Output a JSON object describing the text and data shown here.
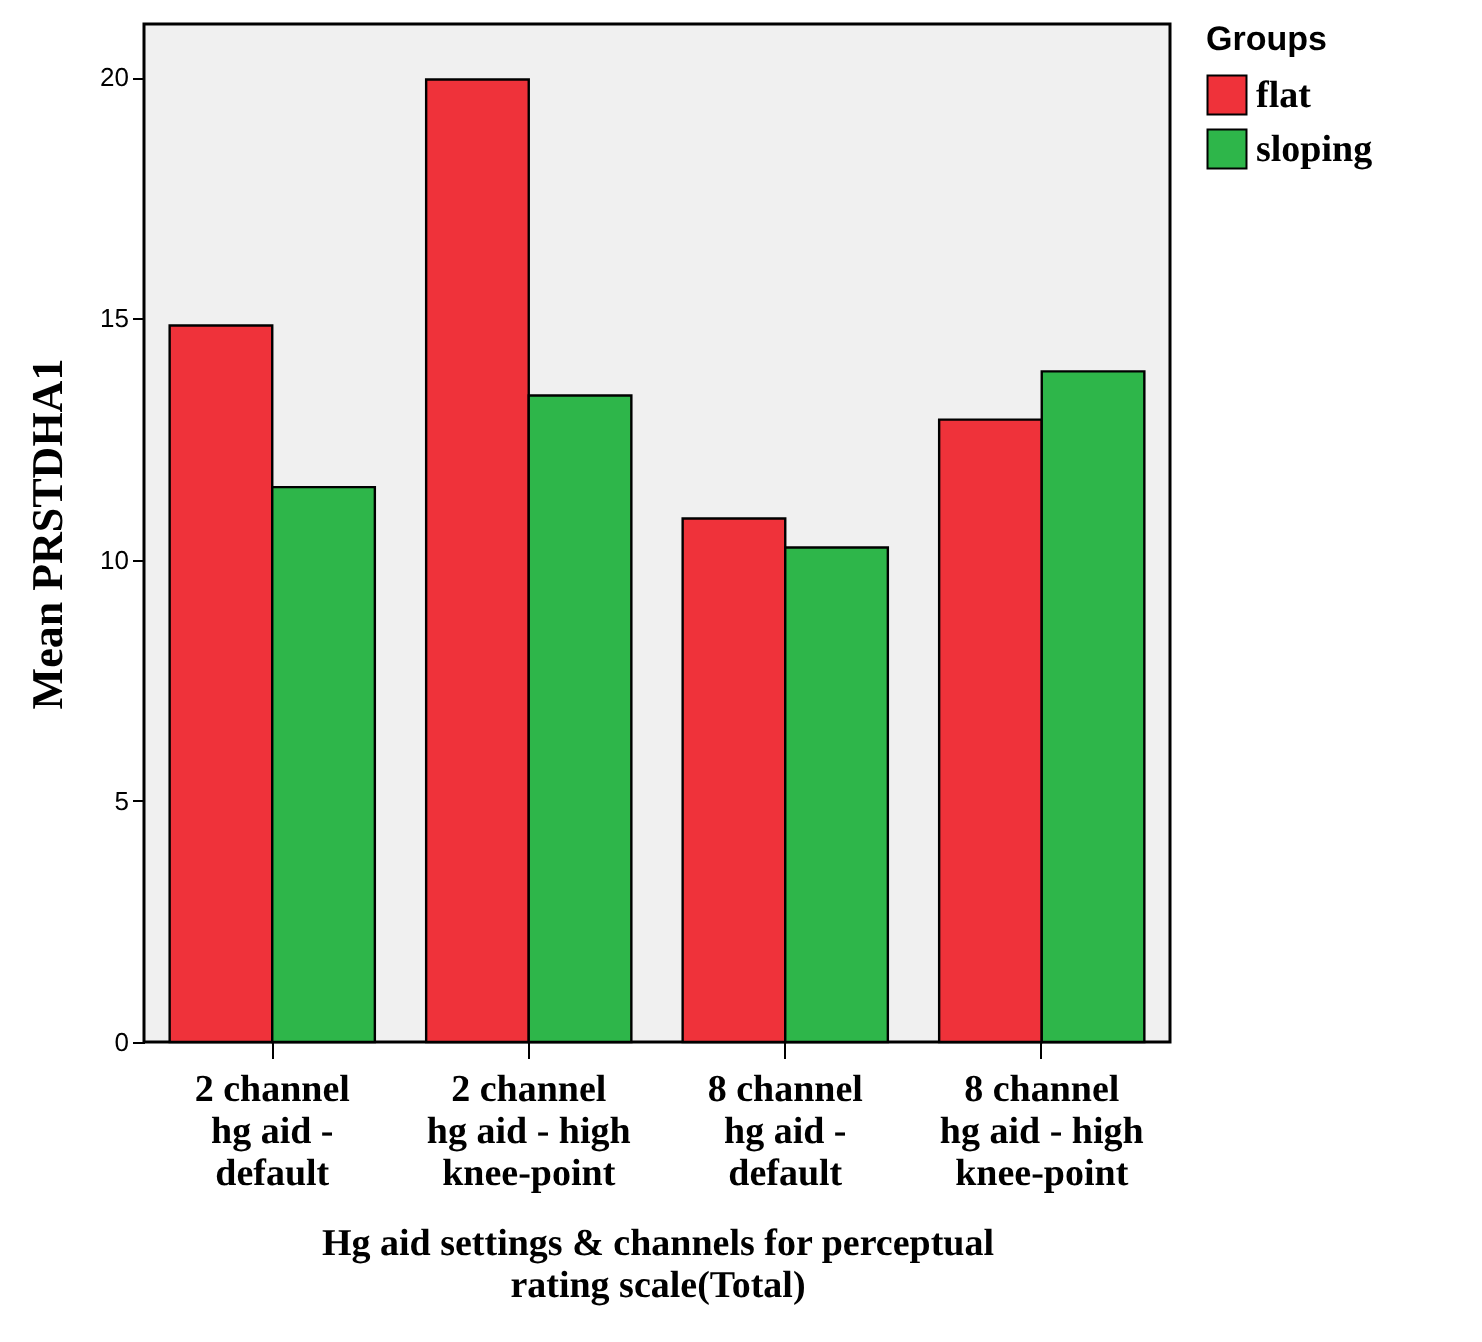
{
  "chart_data": {
    "type": "bar",
    "xlabel": "Hg aid settings & channels for perceptual\nrating scale(Total)",
    "ylabel": "Mean PRSTDHA1",
    "legend_title": "Groups",
    "legend": "top right",
    "grid": false,
    "categories": [
      "2 channel\nhg aid -\ndefault",
      "2 channel\nhg aid - high\nknee-point",
      "8 channel\nhg aid -\ndefault",
      "8 channel\nhg aid - high\nknee-point"
    ],
    "series": [
      {
        "name": "flat",
        "color": "#ef323a",
        "values": [
          14.85,
          19.95,
          10.85,
          12.9
        ]
      },
      {
        "name": "sloping",
        "color": "#2eb64a",
        "values": [
          11.5,
          13.4,
          10.25,
          13.9
        ]
      }
    ],
    "ylim": [
      0,
      21.1
    ],
    "yticks": [
      0,
      5,
      10,
      15,
      20
    ]
  }
}
